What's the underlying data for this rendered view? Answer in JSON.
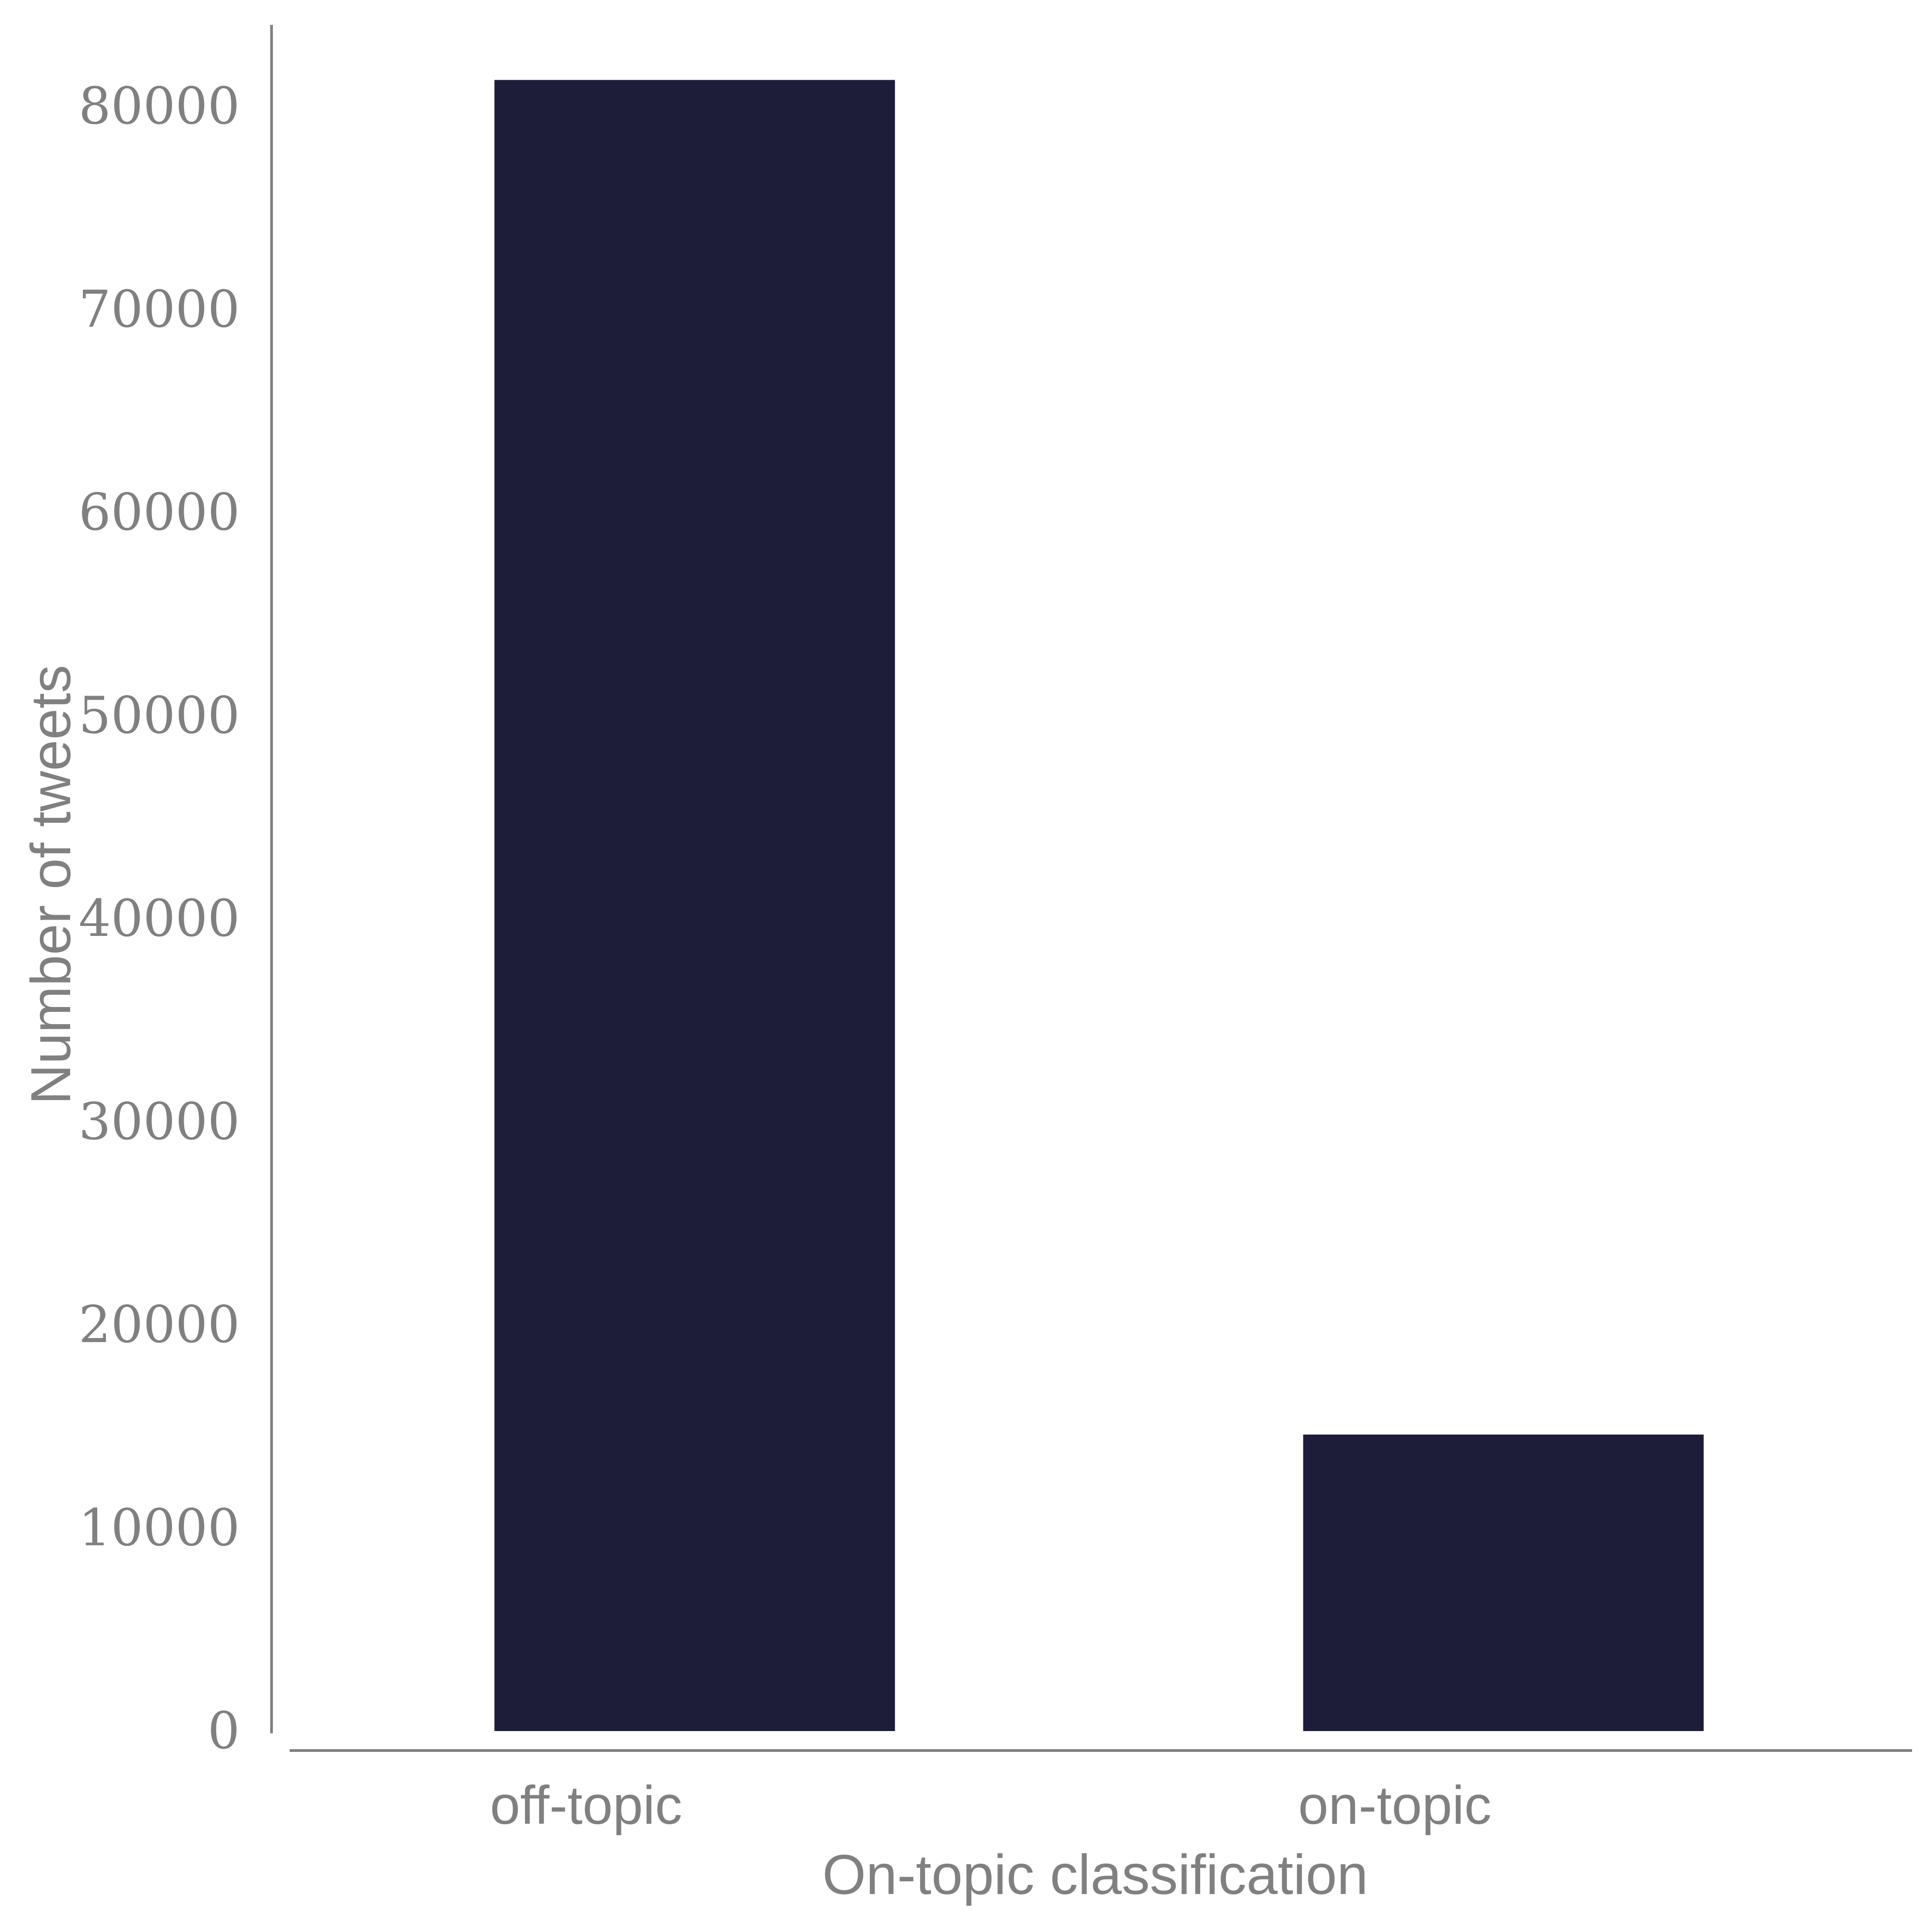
{
  "chart_data": {
    "type": "bar",
    "categories": [
      "off-topic",
      "on-topic"
    ],
    "values": [
      81300,
      14600
    ],
    "xlabel": "On-topic classification",
    "ylabel": "Number of tweets",
    "ylim": [
      0,
      86000
    ],
    "yticks": [
      0,
      10000,
      20000,
      30000,
      40000,
      50000,
      60000,
      70000,
      80000
    ],
    "grid": false,
    "legend": "none",
    "colors": {
      "bar": "#1d1d3a",
      "axis": "#808080",
      "text": "#808080",
      "background": "#ffffff"
    }
  }
}
